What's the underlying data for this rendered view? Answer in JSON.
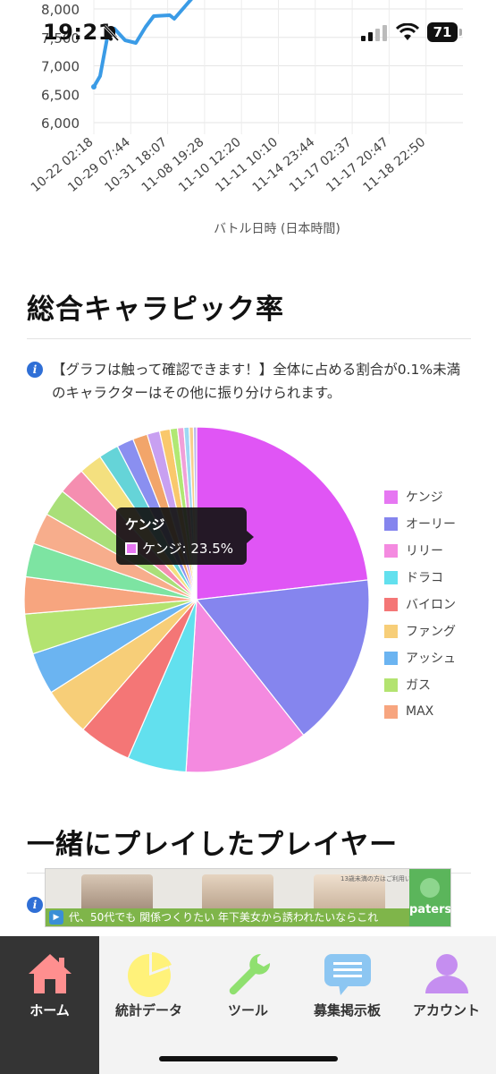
{
  "status_bar": {
    "time": "19:21",
    "battery": "71"
  },
  "line_chart": {
    "type": "line",
    "y_ticks": [
      "8,000",
      "7,500",
      "7,000",
      "6,500",
      "6,000"
    ],
    "x_ticks": [
      "10-22 02:18",
      "10-29 07:44",
      "10-31 18:07",
      "11-08 19:28",
      "11-10 12:20",
      "11-11 10:10",
      "11-14 23:44",
      "11-17 02:37",
      "11-17 20:47",
      "11-18 22:50"
    ],
    "xlabel": "バトル日時 (日本時間)",
    "color": "#3a9be6"
  },
  "pick_rate_section": {
    "title": "総合キャラピック率",
    "info": "【グラフは触って確認できます！】全体に占める割合が0.1%未満のキャラクターはその他に振り分けられます。"
  },
  "chart_data": {
    "type": "pie",
    "legend_position": "right",
    "series_values_percent": [
      23.5,
      16.4,
      11.8,
      5.6,
      5.0,
      4.6,
      4.0,
      3.8,
      3.5,
      3.2,
      3.0,
      2.6,
      2.6,
      2.2,
      1.9,
      1.6,
      1.4,
      1.2,
      1.0,
      0.7,
      0.6,
      0.5,
      0.4,
      0.3
    ],
    "colors": [
      "#e055f5",
      "#8585ee",
      "#f48ae0",
      "#62e0ee",
      "#f47676",
      "#f7ce78",
      "#6bb4f1",
      "#b3e370",
      "#f7a57f",
      "#7de4a2",
      "#f7ad8c",
      "#a9df79",
      "#f58eb0",
      "#f4e07f",
      "#65d4d8",
      "#8a8ff0",
      "#f2a56a",
      "#c8a0f1",
      "#f9c86c",
      "#b0e873",
      "#f0a0d8",
      "#9dd8f3",
      "#f7cf8e",
      "#b7b7ef"
    ],
    "legend": [
      {
        "label": "ケンジ",
        "color": "#e677f2"
      },
      {
        "label": "オーリー",
        "color": "#8585ee"
      },
      {
        "label": "リリー",
        "color": "#f48ae0"
      },
      {
        "label": "ドラコ",
        "color": "#62e0ee"
      },
      {
        "label": "バイロン",
        "color": "#f47676"
      },
      {
        "label": "ファング",
        "color": "#f7ce78"
      },
      {
        "label": "アッシュ",
        "color": "#6bb4f1"
      },
      {
        "label": "ガス",
        "color": "#b3e370"
      },
      {
        "label": "MAX",
        "color": "#f7a57f"
      }
    ],
    "tooltip": {
      "title": "ケンジ",
      "text": "ケンジ: 23.5%"
    }
  },
  "players_section": {
    "title": "一緒にプレイしたプレイヤー"
  },
  "ad": {
    "small_text": "13歳未満の方はご利用いただけません",
    "caption": "代、50代でも 関係つくりたい 年下美女から誘われたいならこれ",
    "brand": "paters"
  },
  "bottom_nav": {
    "items": [
      {
        "label": "ホーム"
      },
      {
        "label": "統計データ"
      },
      {
        "label": "ツール"
      },
      {
        "label": "募集掲示板"
      },
      {
        "label": "アカウント"
      }
    ]
  }
}
